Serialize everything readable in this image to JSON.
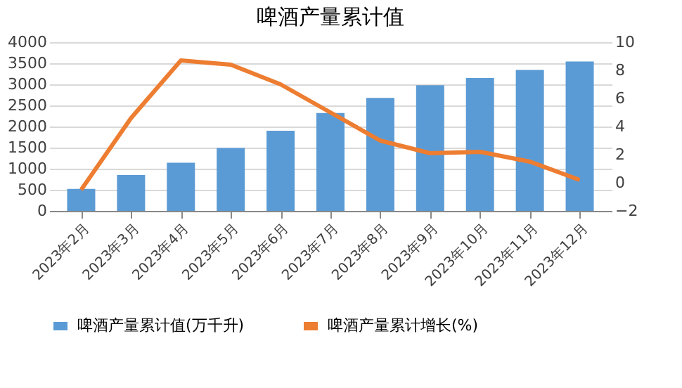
{
  "chart_data": {
    "type": "bar",
    "title": "啤酒产量累计值",
    "categories": [
      "2023年2月",
      "2023年3月",
      "2023年4月",
      "2023年5月",
      "2023年6月",
      "2023年7月",
      "2023年8月",
      "2023年9月",
      "2023年10月",
      "2023年11月",
      "2023年12月"
    ],
    "series": [
      {
        "name": "啤酒产量累计值(万千升)",
        "color": "#5b9bd5",
        "values": [
          520,
          850,
          1140,
          1490,
          1900,
          2320,
          2680,
          2980,
          3150,
          3340,
          3540
        ]
      },
      {
        "name": "啤酒产量累计增长(%)",
        "color": "#ed7d31",
        "type": "line",
        "axis": "y2",
        "values": [
          -0.5,
          4.6,
          8.7,
          8.4,
          7.0,
          5.0,
          3.0,
          2.1,
          2.2,
          1.5,
          0.2
        ]
      }
    ],
    "ylim": [
      0,
      4000
    ],
    "yticks": [
      0,
      500,
      1000,
      1500,
      2000,
      2500,
      3000,
      3500,
      4000
    ],
    "y2lim": [
      -2,
      10
    ],
    "y2ticks": [
      -2,
      0,
      2,
      4,
      6,
      8,
      10
    ],
    "grid": "y",
    "legend": "bottom",
    "marker": "none",
    "line_style": "solid"
  }
}
